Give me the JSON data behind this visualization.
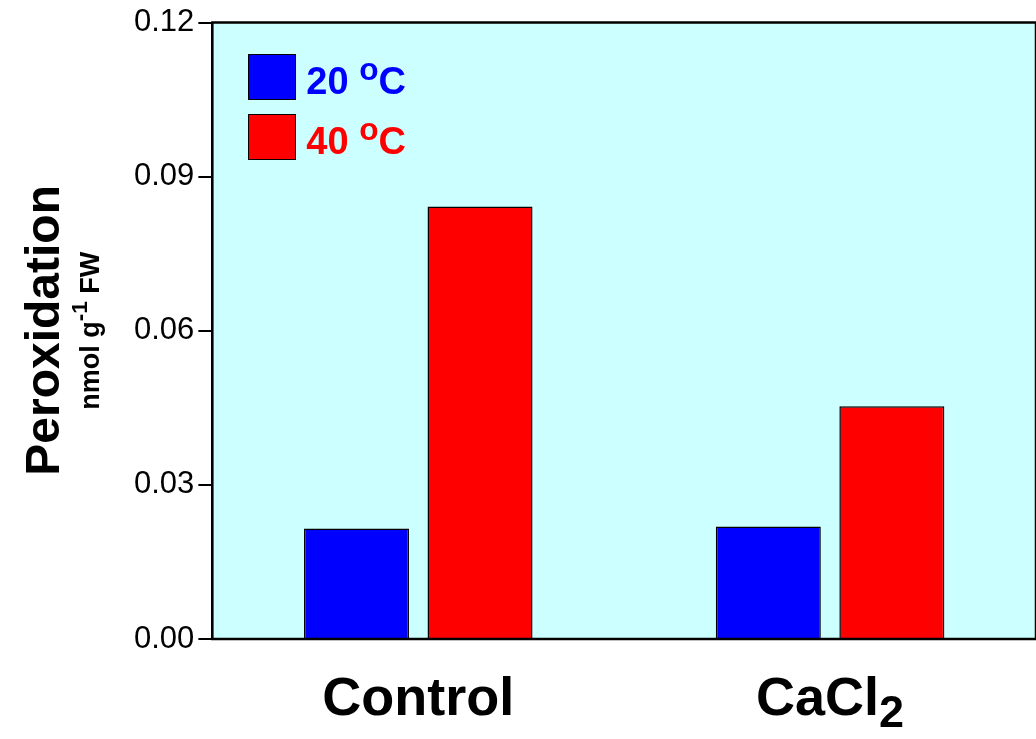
{
  "chart_data": {
    "type": "bar",
    "ylabel": "Peroxidation\nnmol g$^{-1}$  FW",
    "categories": [
      "Control",
      "CaCl$_{2}$"
    ],
    "series": [
      {
        "name": "20 $^{o}$C",
        "color": "#0000ff",
        "values": [
          0.0215,
          0.0219
        ]
      },
      {
        "name": "40 $^{o}$C",
        "color": "#ff0000",
        "values": [
          0.0842,
          0.0453
        ]
      }
    ],
    "ylim": [
      0,
      0.12
    ],
    "yticks": [
      {
        "value": 0,
        "label": "0.00"
      },
      {
        "value": 0.03,
        "label": "0.03"
      },
      {
        "value": 0.06,
        "label": "0.06"
      },
      {
        "value": 0.09,
        "label": "0.09"
      },
      {
        "value": 0.12,
        "label": "0.12"
      }
    ],
    "legend": "top left"
  }
}
